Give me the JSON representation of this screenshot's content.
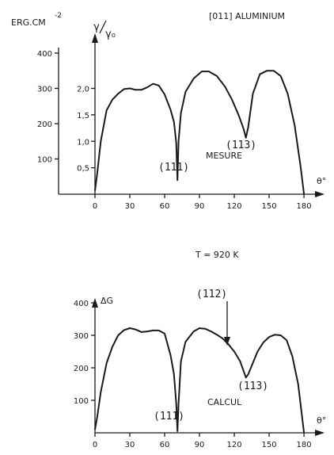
{
  "chart_data": [
    {
      "type": "line",
      "title": "[011] ALUMINIUM",
      "ylabel": "ERG.CM",
      "ylabel_exp": "-2",
      "ylabel2_num": "γ",
      "ylabel2_den": "γ₀",
      "xlabel": "θ°",
      "xlim": [
        0,
        190
      ],
      "ylim": [
        0,
        450
      ],
      "x_ticks": [
        "0",
        "30",
        "60",
        "90",
        "120",
        "150",
        "180"
      ],
      "x_tick_values": [
        0,
        30,
        60,
        90,
        120,
        150,
        180
      ],
      "y_ticks": [
        "100",
        "200",
        "300",
        "400"
      ],
      "y_tick_values": [
        100,
        200,
        300,
        400
      ],
      "y2_ticks": [
        "0,5",
        "1,0",
        "1,5",
        "2,0"
      ],
      "y2_tick_values": [
        0.5,
        1.0,
        1.5,
        2.0
      ],
      "annotations": [
        "(111)",
        "(113)",
        "MESURE"
      ],
      "x": [
        0,
        2,
        5,
        10,
        15,
        20,
        25,
        30,
        35,
        40,
        45,
        50,
        55,
        60,
        65,
        68,
        70,
        71,
        72,
        74,
        78,
        85,
        92,
        98,
        105,
        112,
        118,
        124,
        128,
        130,
        132,
        136,
        142,
        148,
        154,
        160,
        166,
        172,
        177,
        180
      ],
      "values": [
        10,
        60,
        150,
        238,
        268,
        285,
        298,
        300,
        296,
        296,
        303,
        313,
        308,
        283,
        240,
        205,
        145,
        40,
        150,
        230,
        290,
        328,
        348,
        348,
        335,
        305,
        268,
        222,
        185,
        160,
        190,
        285,
        340,
        350,
        350,
        335,
        285,
        195,
        80,
        0
      ]
    },
    {
      "type": "line",
      "title": "T = 920 K",
      "ylabel": "ΔG",
      "xlabel": "θ°",
      "xlim": [
        0,
        190
      ],
      "ylim": [
        0,
        450
      ],
      "x_ticks": [
        "0",
        "30",
        "60",
        "90",
        "120",
        "150",
        "180"
      ],
      "x_tick_values": [
        0,
        30,
        60,
        90,
        120,
        150,
        180
      ],
      "y_ticks": [
        "100",
        "200",
        "300",
        "400"
      ],
      "y_tick_values": [
        100,
        200,
        300,
        400
      ],
      "annotations": [
        "(112)",
        "(113)",
        "(111)",
        "CALCUL"
      ],
      "x": [
        0,
        2,
        5,
        10,
        15,
        20,
        25,
        30,
        35,
        40,
        45,
        50,
        55,
        60,
        65,
        68,
        70,
        71,
        72,
        74,
        78,
        85,
        90,
        95,
        100,
        105,
        110,
        115,
        120,
        125,
        128,
        130,
        132,
        136,
        140,
        145,
        150,
        155,
        160,
        165,
        170,
        175,
        180
      ],
      "values": [
        10,
        50,
        125,
        215,
        265,
        300,
        316,
        322,
        318,
        310,
        312,
        315,
        315,
        305,
        240,
        180,
        90,
        5,
        90,
        220,
        280,
        312,
        322,
        320,
        312,
        302,
        290,
        272,
        250,
        220,
        190,
        170,
        180,
        215,
        250,
        278,
        295,
        302,
        300,
        285,
        235,
        150,
        0
      ]
    }
  ]
}
